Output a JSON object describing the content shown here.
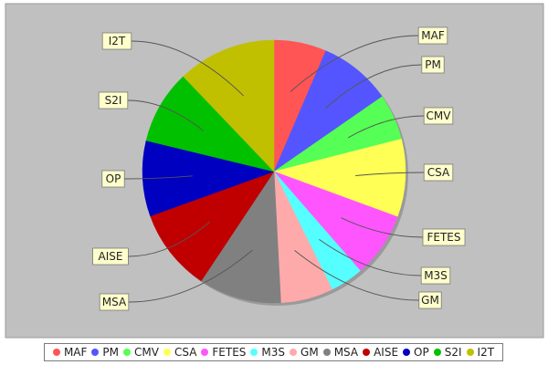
{
  "chart_data": {
    "type": "pie",
    "title": "",
    "labels": [
      "MAF",
      "PM",
      "CMV",
      "CSA",
      "FETES",
      "M3S",
      "GM",
      "MSA",
      "AISE",
      "OP",
      "S2I",
      "I2T"
    ],
    "values": [
      6.6,
      9.1,
      5.8,
      9.8,
      8.2,
      4.2,
      6.6,
      10.4,
      10.4,
      9.5,
      9.3,
      12.4
    ],
    "colors": [
      "#ff5555",
      "#5555ff",
      "#55ff55",
      "#ffff55",
      "#ff55ff",
      "#55ffff",
      "#ffaaaa",
      "#808080",
      "#c00000",
      "#0000c0",
      "#00c000",
      "#c0c000"
    ],
    "legend_position": "bottom",
    "plot_background": "#c0c0c0"
  }
}
